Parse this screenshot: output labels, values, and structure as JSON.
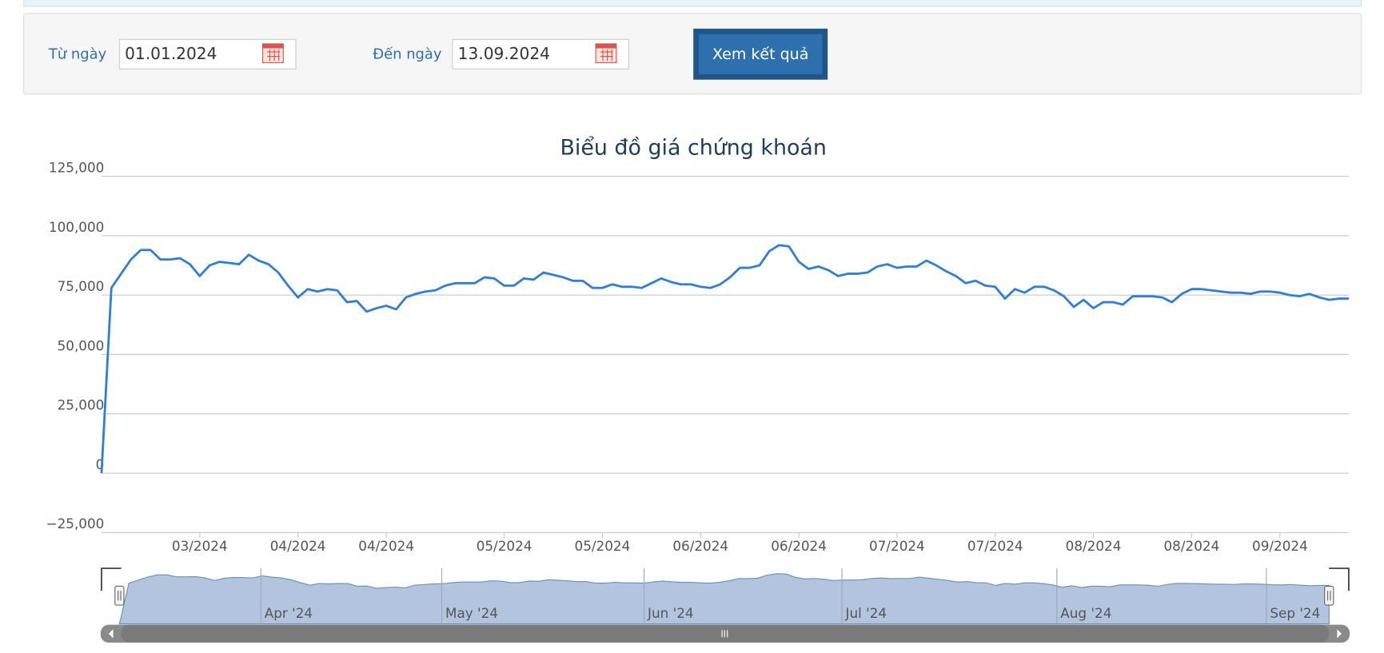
{
  "form": {
    "from_label": "Từ ngày",
    "from_value": "01.01.2024",
    "to_label": "Đến ngày",
    "to_value": "13.09.2024",
    "button": "Xem kết quả"
  },
  "chart_data": {
    "type": "line",
    "title": "Biểu đồ giá chứng khoán",
    "color": "#2f7ed8",
    "grid": true,
    "ylim": [
      -25000,
      125000
    ],
    "yticks": [
      {
        "value": -25000,
        "label": "−25,000"
      },
      {
        "value": 25000,
        "label": "25,000"
      },
      {
        "value": 50000,
        "label": "50,000"
      },
      {
        "value": 75000,
        "label": "75,000"
      },
      {
        "value": 100000,
        "label": "100,000"
      },
      {
        "value": 125000,
        "label": "125,000"
      },
      0
    ],
    "categories": [
      null,
      null,
      null,
      null,
      null,
      null,
      null,
      null,
      null,
      null,
      "03/2024",
      null,
      null,
      null,
      null,
      null,
      null,
      null,
      null,
      null,
      "04/2024",
      null,
      null,
      null,
      null,
      null,
      null,
      null,
      null,
      "04/2024",
      null,
      null,
      null,
      null,
      null,
      null,
      null,
      null,
      null,
      null,
      null,
      "05/2024",
      null,
      null,
      null,
      null,
      null,
      null,
      null,
      null,
      null,
      "05/2024",
      null,
      null,
      null,
      null,
      null,
      null,
      null,
      null,
      null,
      "06/2024",
      null,
      null,
      null,
      null,
      null,
      null,
      null,
      null,
      null,
      "06/2024",
      null,
      null,
      null,
      null,
      null,
      null,
      null,
      null,
      null,
      "07/2024",
      null,
      null,
      null,
      null,
      null,
      null,
      null,
      null,
      null,
      "07/2024",
      null,
      null,
      null,
      null,
      null,
      null,
      null,
      null,
      null,
      "08/2024",
      null,
      null,
      null,
      null,
      null,
      null,
      null,
      null,
      null,
      "08/2024",
      null,
      null,
      null,
      null,
      null,
      null,
      null,
      null,
      "09/2024",
      null,
      null,
      null,
      null,
      null,
      null,
      null
    ],
    "values": [
      0,
      78000,
      84000,
      90000,
      94000,
      94000,
      90000,
      90000,
      90500,
      88000,
      83000,
      87500,
      89000,
      88500,
      88000,
      92000,
      89500,
      88000,
      84500,
      79000,
      74000,
      77500,
      76500,
      77500,
      77000,
      72000,
      72500,
      68000,
      69500,
      70500,
      69000,
      74000,
      75500,
      76500,
      77000,
      79000,
      80000,
      80000,
      80000,
      82500,
      82000,
      79000,
      79000,
      82000,
      81500,
      84500,
      83500,
      82500,
      81000,
      81000,
      78000,
      78000,
      79500,
      78500,
      78500,
      78000,
      80000,
      82000,
      80500,
      79500,
      79500,
      78500,
      78000,
      79500,
      82500,
      86500,
      86500,
      87500,
      93500,
      96000,
      95500,
      89000,
      86000,
      87000,
      85500,
      83000,
      84000,
      84000,
      84500,
      87000,
      88000,
      86500,
      87000,
      87000,
      89500,
      87500,
      85000,
      83000,
      80000,
      81000,
      79000,
      78500,
      73500,
      77500,
      76000,
      78500,
      78500,
      77000,
      74500,
      70000,
      73000,
      69500,
      72000,
      72000,
      71000,
      74500,
      74500,
      74500,
      74000,
      72000,
      75500,
      77500,
      77500,
      77000,
      76500,
      76000,
      76000,
      75500,
      76500,
      76500,
      76000,
      75000,
      74500,
      75500,
      74000,
      73000,
      73500,
      73500
    ],
    "navigator": {
      "labels": [
        "Apr '24",
        "May '24",
        "Jun '24",
        "Jul '24",
        "Aug '24",
        "Sep '24"
      ]
    }
  }
}
